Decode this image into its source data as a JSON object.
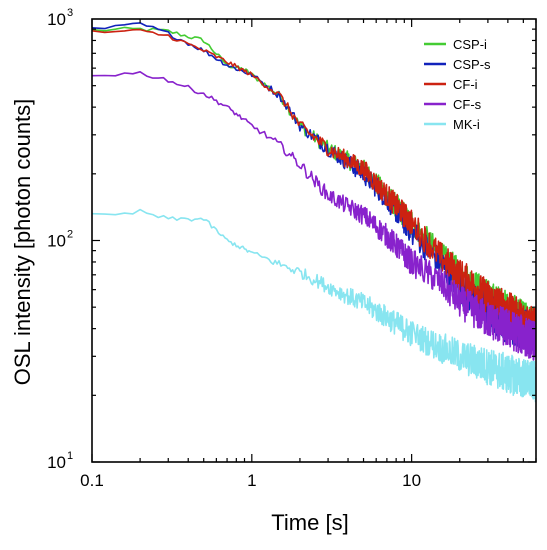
{
  "chart_data": {
    "type": "line",
    "xlabel": "Time [s]",
    "ylabel": "OSL intensity [photon counts]",
    "xscale": "log",
    "yscale": "log",
    "xlim": [
      0.1,
      60
    ],
    "ylim": [
      10,
      1000
    ],
    "grid": false,
    "legend_position": "top-right",
    "x_ticks": [
      {
        "value": 0.1,
        "label": "0.1"
      },
      {
        "value": 1,
        "label": "1"
      },
      {
        "value": 10,
        "label": "10"
      }
    ],
    "y_ticks": [
      {
        "value": 10,
        "base": "10",
        "exp": "1"
      },
      {
        "value": 100,
        "base": "10",
        "exp": "2"
      },
      {
        "value": 1000,
        "base": "10",
        "exp": "3"
      }
    ],
    "series": [
      {
        "name": "CSP-i",
        "color": "#44cc33",
        "x": [
          0.1,
          0.15,
          0.2,
          0.3,
          0.5,
          0.7,
          0.9,
          1,
          1.5,
          2,
          3,
          5,
          7,
          10,
          15,
          20,
          30,
          40,
          60
        ],
        "y": [
          890,
          895,
          900,
          880,
          800,
          620,
          590,
          560,
          450,
          330,
          260,
          210,
          160,
          120,
          85,
          70,
          55,
          48,
          40
        ]
      },
      {
        "name": "CSP-s",
        "color": "#1122bb",
        "x": [
          0.1,
          0.15,
          0.2,
          0.3,
          0.5,
          0.7,
          1,
          1.5,
          2,
          3,
          5,
          7,
          10,
          15,
          20,
          30,
          40,
          60
        ],
        "y": [
          900,
          920,
          950,
          860,
          720,
          620,
          560,
          450,
          330,
          260,
          200,
          155,
          110,
          80,
          62,
          48,
          42,
          38
        ]
      },
      {
        "name": "CF-i",
        "color": "#cc2211",
        "x": [
          0.1,
          0.15,
          0.2,
          0.3,
          0.5,
          0.7,
          1,
          1.5,
          2,
          3,
          5,
          7,
          10,
          15,
          20,
          30,
          40,
          60
        ],
        "y": [
          870,
          880,
          880,
          840,
          720,
          640,
          560,
          450,
          330,
          260,
          210,
          160,
          120,
          85,
          70,
          55,
          48,
          40
        ]
      },
      {
        "name": "CF-s",
        "color": "#8822cc",
        "x": [
          0.1,
          0.15,
          0.2,
          0.3,
          0.5,
          0.7,
          1,
          1.5,
          2,
          3,
          5,
          7,
          10,
          15,
          20,
          30,
          40,
          60
        ],
        "y": [
          560,
          565,
          570,
          530,
          460,
          400,
          330,
          270,
          220,
          160,
          130,
          105,
          80,
          65,
          53,
          44,
          40,
          35
        ]
      },
      {
        "name": "MK-i",
        "color": "#88e5f0",
        "x": [
          0.1,
          0.15,
          0.2,
          0.3,
          0.5,
          0.7,
          1,
          1.5,
          2,
          3,
          5,
          7,
          10,
          15,
          20,
          30,
          40,
          60
        ],
        "y": [
          130,
          130,
          135,
          125,
          125,
          100,
          88,
          78,
          72,
          62,
          52,
          45,
          38,
          33,
          30,
          27,
          25,
          23
        ]
      }
    ]
  }
}
